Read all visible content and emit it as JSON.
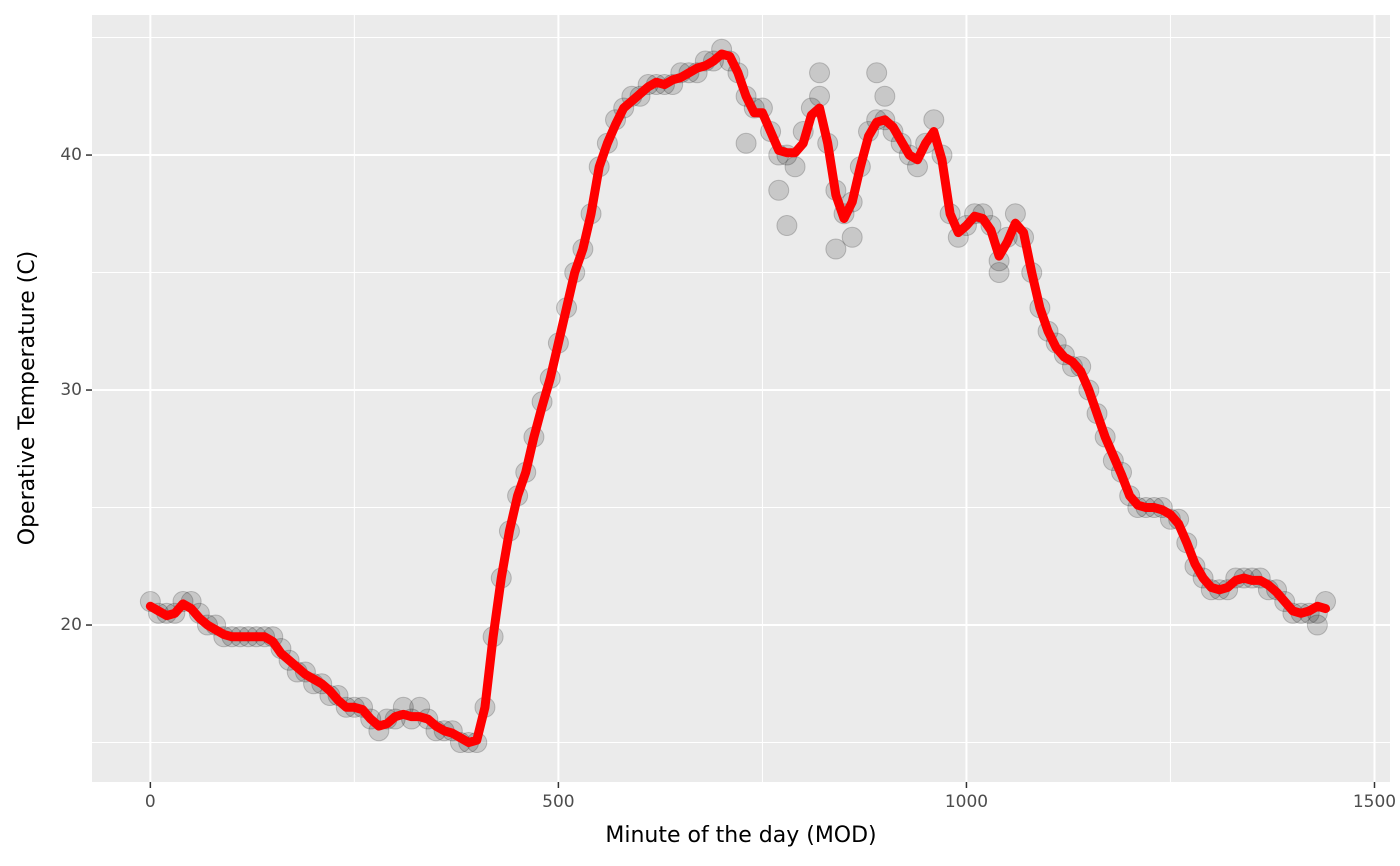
{
  "chart_data": {
    "type": "scatter",
    "x_label": "Minute of the day (MOD)",
    "y_label": "Operative Temperature (C)",
    "xlim": [
      -71.5,
      1519
    ],
    "ylim": [
      13.32,
      45.96
    ],
    "xticks": [
      0,
      500,
      1000,
      1500
    ],
    "yticks": [
      20,
      30,
      40
    ],
    "xminor": [
      250,
      750,
      1250
    ],
    "yminor": [
      15,
      25,
      35,
      45
    ],
    "grid": true,
    "points": {
      "type": "scatter",
      "color": "#000000",
      "opacity": 0.15,
      "x": [
        0,
        10,
        20,
        30,
        40,
        50,
        60,
        70,
        80,
        90,
        100,
        110,
        120,
        130,
        140,
        150,
        160,
        170,
        180,
        190,
        200,
        210,
        220,
        230,
        240,
        250,
        260,
        270,
        280,
        290,
        300,
        310,
        320,
        330,
        340,
        350,
        360,
        370,
        380,
        390,
        400,
        410,
        420,
        430,
        440,
        450,
        460,
        470,
        480,
        490,
        500,
        510,
        520,
        530,
        540,
        550,
        560,
        570,
        580,
        590,
        600,
        610,
        620,
        630,
        640,
        650,
        660,
        670,
        680,
        690,
        700,
        710,
        720,
        730,
        740,
        750,
        760,
        770,
        780,
        790,
        800,
        810,
        820,
        830,
        840,
        850,
        860,
        870,
        880,
        890,
        900,
        910,
        920,
        930,
        940,
        950,
        960,
        970,
        980,
        990,
        1000,
        1010,
        1020,
        1030,
        1040,
        1050,
        1060,
        1070,
        1080,
        1090,
        1100,
        1110,
        1120,
        1130,
        1140,
        1150,
        1160,
        1170,
        1180,
        1190,
        1200,
        1210,
        1220,
        1230,
        1240,
        1250,
        1260,
        1270,
        1280,
        1290,
        1300,
        1310,
        1320,
        1330,
        1340,
        1350,
        1360,
        1370,
        1380,
        1390,
        1400,
        1410,
        1420,
        1430,
        1440,
        730,
        770,
        780,
        820,
        840,
        860,
        890,
        900,
        1040,
        1430
      ],
      "values": [
        21,
        20.5,
        20.5,
        20.5,
        21,
        21,
        20.5,
        20,
        20,
        19.5,
        19.5,
        19.5,
        19.5,
        19.5,
        19.5,
        19.5,
        19,
        18.5,
        18,
        18,
        17.5,
        17.5,
        17,
        17,
        16.5,
        16.5,
        16.5,
        16,
        15.5,
        16,
        16,
        16.5,
        16,
        16.5,
        16,
        15.5,
        15.5,
        15.5,
        15,
        15,
        15,
        16.5,
        19.5,
        22,
        24,
        25.5,
        26.5,
        28,
        29.5,
        30.5,
        32,
        33.5,
        35,
        36,
        37.5,
        39.5,
        40.5,
        41.5,
        42,
        42.5,
        42.5,
        43,
        43,
        43,
        43,
        43.5,
        43.5,
        43.5,
        44,
        44,
        44.5,
        44,
        43.5,
        42.5,
        42,
        42,
        41,
        40,
        40,
        39.5,
        41,
        42,
        42.5,
        40.5,
        38.5,
        37.5,
        38,
        39.5,
        41,
        41.5,
        41.5,
        41,
        40.5,
        40,
        39.5,
        40.5,
        41.5,
        40,
        37.5,
        36.5,
        37,
        37.5,
        37.5,
        37,
        35.5,
        36.5,
        37.5,
        36.5,
        35,
        33.5,
        32.5,
        32,
        31.5,
        31,
        31,
        30,
        29,
        28,
        27,
        26.5,
        25.5,
        25,
        25,
        25,
        25,
        24.5,
        24.5,
        23.5,
        22.5,
        22,
        21.5,
        21.5,
        21.5,
        22,
        22,
        22,
        22,
        21.5,
        21.5,
        21,
        20.5,
        20.5,
        20.5,
        20.5,
        21,
        40.5,
        38.5,
        37,
        43.5,
        36,
        36.5,
        43.5,
        42.5,
        35,
        20
      ]
    },
    "smooth": {
      "type": "line",
      "color": "#ff0000",
      "x": [
        0,
        10,
        20,
        30,
        40,
        50,
        60,
        70,
        80,
        90,
        100,
        110,
        120,
        130,
        140,
        150,
        160,
        170,
        180,
        190,
        200,
        210,
        220,
        230,
        240,
        250,
        260,
        270,
        280,
        290,
        300,
        310,
        320,
        330,
        340,
        350,
        360,
        370,
        380,
        390,
        400,
        410,
        420,
        430,
        440,
        450,
        460,
        470,
        480,
        490,
        500,
        510,
        520,
        530,
        540,
        550,
        560,
        570,
        580,
        590,
        600,
        610,
        620,
        630,
        640,
        650,
        660,
        670,
        680,
        690,
        700,
        710,
        720,
        730,
        740,
        750,
        760,
        770,
        780,
        790,
        800,
        810,
        820,
        830,
        840,
        850,
        860,
        870,
        880,
        890,
        900,
        910,
        920,
        930,
        940,
        950,
        960,
        970,
        980,
        990,
        1000,
        1010,
        1020,
        1030,
        1040,
        1050,
        1060,
        1070,
        1080,
        1090,
        1100,
        1110,
        1120,
        1130,
        1140,
        1150,
        1160,
        1170,
        1180,
        1190,
        1200,
        1210,
        1220,
        1230,
        1240,
        1250,
        1260,
        1270,
        1280,
        1290,
        1300,
        1310,
        1320,
        1330,
        1340,
        1350,
        1360,
        1370,
        1380,
        1390,
        1400,
        1410,
        1420,
        1430,
        1440
      ],
      "values": [
        20.8,
        20.6,
        20.4,
        20.5,
        20.9,
        20.7,
        20.3,
        20.0,
        19.8,
        19.6,
        19.5,
        19.5,
        19.5,
        19.5,
        19.5,
        19.3,
        18.8,
        18.5,
        18.2,
        17.9,
        17.7,
        17.5,
        17.2,
        16.8,
        16.5,
        16.5,
        16.4,
        16.0,
        15.7,
        15.8,
        16.1,
        16.2,
        16.1,
        16.1,
        16.0,
        15.7,
        15.5,
        15.4,
        15.2,
        15.0,
        15.1,
        16.5,
        19.5,
        22.0,
        24.0,
        25.5,
        26.5,
        28.0,
        29.3,
        30.5,
        32.0,
        33.5,
        35.0,
        36.0,
        37.5,
        39.5,
        40.5,
        41.3,
        42.0,
        42.3,
        42.6,
        42.9,
        43.1,
        43.0,
        43.2,
        43.3,
        43.5,
        43.7,
        43.8,
        44.0,
        44.3,
        44.2,
        43.5,
        42.5,
        41.8,
        41.8,
        41.0,
        40.2,
        40.1,
        40.1,
        40.5,
        41.7,
        42.0,
        40.5,
        38.3,
        37.3,
        38.0,
        39.5,
        40.8,
        41.4,
        41.5,
        41.2,
        40.6,
        40.0,
        39.8,
        40.5,
        41.0,
        39.8,
        37.5,
        36.7,
        37.0,
        37.4,
        37.3,
        36.8,
        35.7,
        36.3,
        37.1,
        36.7,
        35.0,
        33.5,
        32.5,
        31.8,
        31.4,
        31.2,
        30.8,
        30.0,
        29.0,
        28.0,
        27.2,
        26.4,
        25.5,
        25.1,
        25.0,
        25.0,
        24.9,
        24.7,
        24.3,
        23.5,
        22.6,
        22.0,
        21.6,
        21.5,
        21.6,
        21.9,
        22.0,
        21.9,
        21.9,
        21.7,
        21.4,
        21.0,
        20.6,
        20.5,
        20.6,
        20.8,
        20.7
      ]
    }
  }
}
